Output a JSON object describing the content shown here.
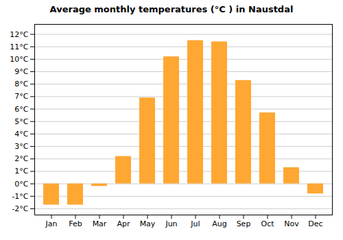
{
  "chart_data": {
    "type": "bar",
    "title": "Average monthly temperatures (°C ) in Naustdal",
    "categories": [
      "Jan",
      "Feb",
      "Mar",
      "Apr",
      "May",
      "Jun",
      "Jul",
      "Aug",
      "Sep",
      "Oct",
      "Nov",
      "Dec"
    ],
    "values": [
      -1.7,
      -1.7,
      -0.2,
      2.2,
      6.9,
      10.2,
      11.5,
      11.4,
      8.3,
      5.7,
      1.3,
      -0.8
    ],
    "color": "#FFA733",
    "ylim": [
      -2.5,
      12.8
    ],
    "yticks": [
      {
        "value": -2,
        "label": "-2°C"
      },
      {
        "value": -1,
        "label": "-1°C"
      },
      {
        "value": 0,
        "label": "0°C"
      },
      {
        "value": 1,
        "label": "1°C"
      },
      {
        "value": 2,
        "label": "2°C"
      },
      {
        "value": 3,
        "label": "3°C"
      },
      {
        "value": 4,
        "label": "4°C"
      },
      {
        "value": 5,
        "label": "5°C"
      },
      {
        "value": 6,
        "label": "6°C"
      },
      {
        "value": 7,
        "label": "7°C"
      },
      {
        "value": 8,
        "label": "8°C"
      },
      {
        "value": 9,
        "label": "9°C"
      },
      {
        "value": 10,
        "label": "10°C"
      },
      {
        "value": 11,
        "label": "11°C"
      },
      {
        "value": 12,
        "label": "12°C"
      }
    ],
    "grid": true
  }
}
